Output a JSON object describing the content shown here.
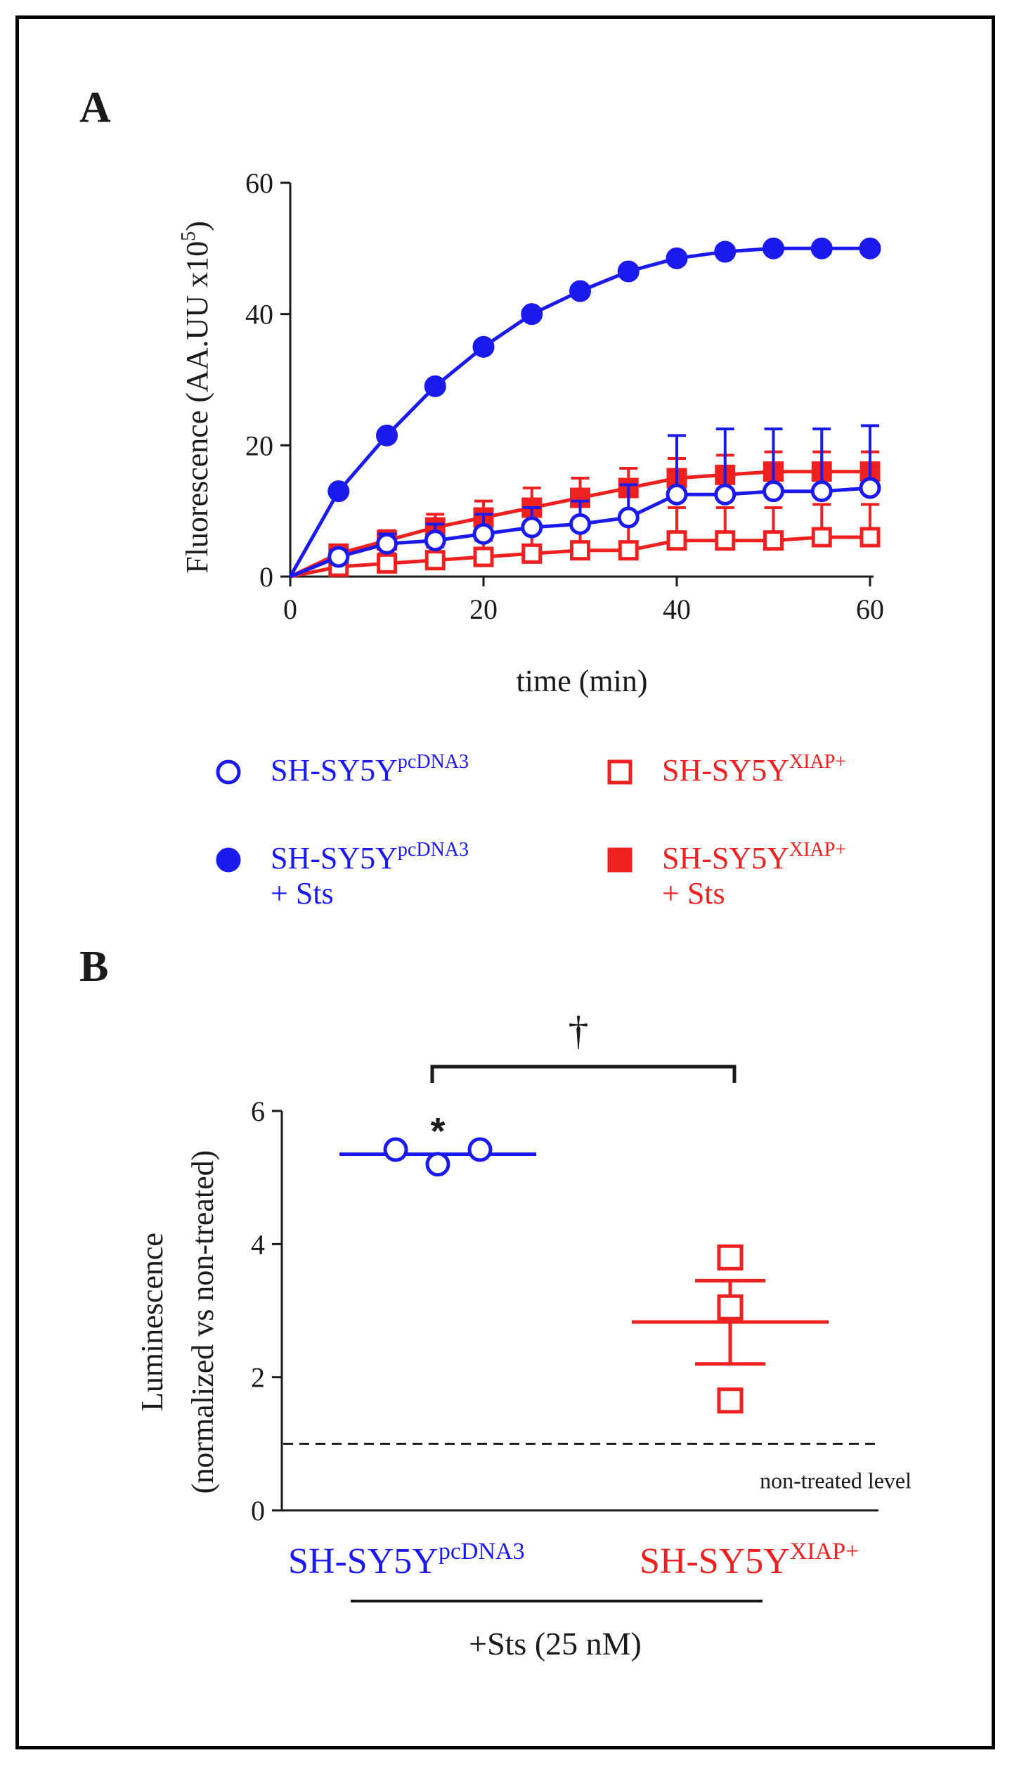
{
  "colors": {
    "blue": "#1a1aef",
    "red": "#ef2020",
    "black": "#1a1a1a"
  },
  "chart_data": [
    {
      "panel": "A",
      "type": "line",
      "xlabel": "time (min)",
      "ylabel": "Fluorescence (AA.UU x10",
      "ylabel_sup": "5",
      "ylabel_close": ")",
      "xlim": [
        0,
        60
      ],
      "ylim": [
        0,
        60
      ],
      "xticks": [
        "0",
        "20",
        "40",
        "60"
      ],
      "yticks": [
        "0",
        "20",
        "40",
        "60"
      ],
      "x": [
        0,
        5,
        10,
        15,
        20,
        25,
        30,
        35,
        40,
        45,
        50,
        55,
        60
      ],
      "series": [
        {
          "name": "SH-SY5Y pcDNA3 + Sts",
          "color": "blue",
          "marker": "filled-circle",
          "values": [
            0,
            13,
            21.5,
            29,
            35,
            40,
            43.5,
            46.5,
            48.5,
            49.5,
            50,
            50,
            50
          ],
          "errors": [
            0,
            0,
            0,
            0,
            0,
            0,
            0,
            0,
            0,
            0,
            0,
            0,
            0
          ]
        },
        {
          "name": "SH-SY5Y XIAP+ + Sts",
          "color": "red",
          "marker": "filled-square",
          "values": [
            0,
            3.5,
            5.5,
            7.5,
            9,
            10.5,
            12,
            13.5,
            15,
            15.5,
            16,
            16,
            16
          ],
          "errors": [
            0,
            1,
            1.5,
            2,
            2.5,
            3,
            3,
            3,
            3,
            3,
            3,
            3,
            3
          ]
        },
        {
          "name": "SH-SY5Y pcDNA3",
          "color": "blue",
          "marker": "open-circle",
          "values": [
            0,
            3,
            5,
            5.5,
            6.5,
            7.5,
            8,
            9,
            12.5,
            12.5,
            13,
            13,
            13.5
          ],
          "errors": [
            0,
            1,
            1.5,
            2.5,
            3,
            3,
            3.5,
            5,
            9,
            10,
            9.5,
            9.5,
            9.5
          ]
        },
        {
          "name": "SH-SY5Y XIAP+",
          "color": "red",
          "marker": "open-square",
          "values": [
            0,
            1.5,
            2,
            2.5,
            3,
            3.5,
            4,
            4,
            5.5,
            5.5,
            5.5,
            6,
            6
          ],
          "errors": [
            0,
            1,
            1.5,
            2,
            2.5,
            3.5,
            4,
            4.5,
            5,
            5,
            5,
            5,
            5
          ]
        }
      ]
    },
    {
      "panel": "B",
      "type": "scatter",
      "ylabel": "Luminescence",
      "ylabel2": "(normalized vs non-treated)",
      "ylim": [
        0,
        6
      ],
      "yticks": [
        "0",
        "2",
        "4",
        "6"
      ],
      "reference_line": {
        "value": 1,
        "label": "non-treated level"
      },
      "treatment_label": "+Sts (25 nM)",
      "significance": {
        "star": "*",
        "dagger": "†"
      },
      "groups": [
        {
          "name": "SH-SY5Y",
          "sup": "pcDNA3",
          "color": "blue",
          "marker": "open-circle",
          "points": [
            5.42,
            5.2,
            5.42
          ],
          "mean": 5.35,
          "sem_low": 5.3,
          "sem_high": 5.4
        },
        {
          "name": "SH-SY5Y",
          "sup": "XIAP+",
          "color": "red",
          "marker": "open-square",
          "points": [
            3.8,
            3.05,
            1.65
          ],
          "mean": 2.83,
          "sem_low": 2.2,
          "sem_high": 3.45
        }
      ]
    }
  ],
  "legend": [
    {
      "marker": "open-circle",
      "color": "blue",
      "line1": "SH-SY5Y",
      "sup": "pcDNA3",
      "line2": ""
    },
    {
      "marker": "open-square",
      "color": "red",
      "line1": "SH-SY5Y",
      "sup": "XIAP+",
      "line2": ""
    },
    {
      "marker": "filled-circle",
      "color": "blue",
      "line1": "SH-SY5Y",
      "sup": "pcDNA3",
      "line2": "+ Sts"
    },
    {
      "marker": "filled-square",
      "color": "red",
      "line1": "SH-SY5Y",
      "sup": "XIAP+",
      "line2": "+ Sts"
    }
  ]
}
